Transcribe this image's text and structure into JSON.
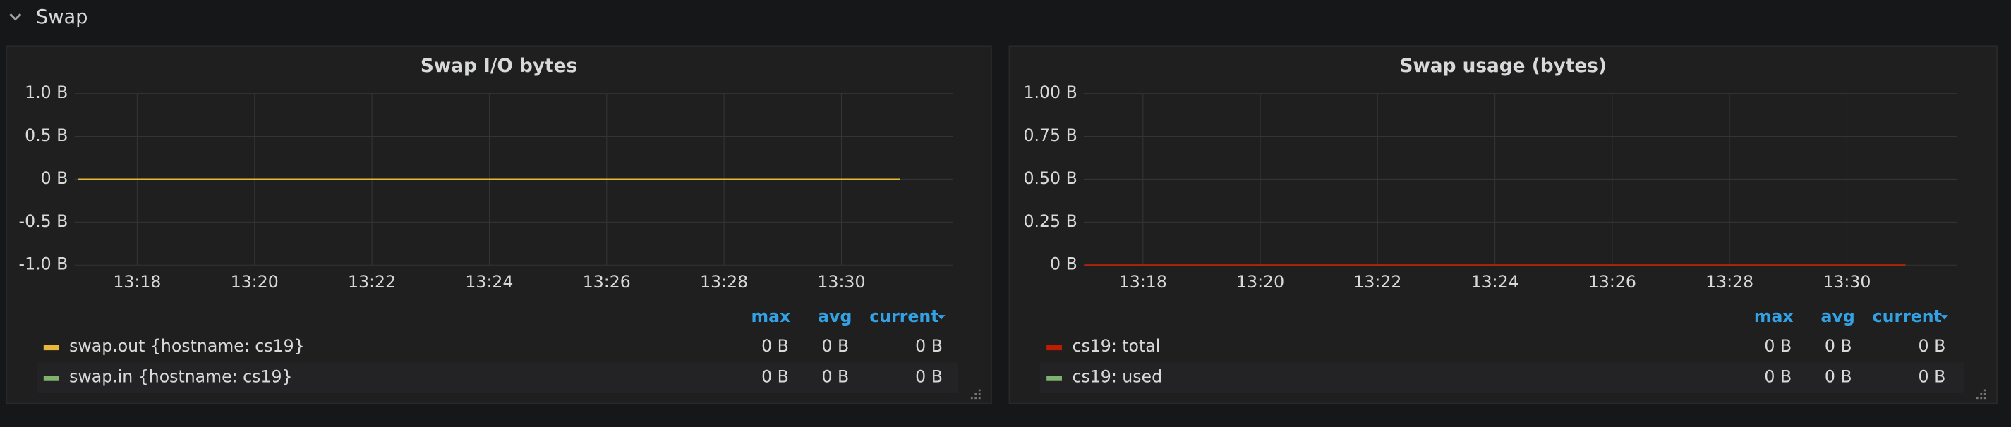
{
  "row_title": "Swap",
  "chart_data": [
    {
      "type": "line",
      "title": "Swap I/O bytes",
      "x": [
        797,
        798,
        799,
        800,
        801,
        802,
        803,
        804,
        805,
        806,
        807,
        808,
        809,
        810,
        811
      ],
      "xlim": [
        796.93,
        811.9
      ],
      "xticks": [
        {
          "value": 798,
          "label": "13:18"
        },
        {
          "value": 800,
          "label": "13:20"
        },
        {
          "value": 802,
          "label": "13:22"
        },
        {
          "value": 804,
          "label": "13:24"
        },
        {
          "value": 806,
          "label": "13:26"
        },
        {
          "value": 808,
          "label": "13:28"
        },
        {
          "value": 810,
          "label": "13:30"
        }
      ],
      "ylim": [
        -1,
        1
      ],
      "yticks": [
        {
          "value": 1,
          "label": "1.0 B"
        },
        {
          "value": 0.5,
          "label": "0.5 B"
        },
        {
          "value": 0,
          "label": "0 B"
        },
        {
          "value": -0.5,
          "label": "-0.5 B"
        },
        {
          "value": -1,
          "label": "-1.0 B"
        }
      ],
      "grid": true,
      "legend_columns": [
        "max",
        "avg",
        "current"
      ],
      "series": [
        {
          "name": "swap.out {hostname: cs19}",
          "color": "#eab839",
          "values": [
            0,
            0,
            0,
            0,
            0,
            0,
            0,
            0,
            0,
            0,
            0,
            0,
            0,
            0,
            0
          ],
          "stats": [
            "0 B",
            "0 B",
            "0 B"
          ]
        },
        {
          "name": "swap.in {hostname: cs19}",
          "color": "#7eb26d",
          "values": [
            0,
            0,
            0,
            0,
            0,
            0,
            0,
            0,
            0,
            0,
            0,
            0,
            0,
            0,
            0
          ],
          "stats": [
            "0 B",
            "0 B",
            "0 B"
          ]
        }
      ]
    },
    {
      "type": "line",
      "title": "Swap usage (bytes)",
      "x": [
        797,
        798,
        799,
        800,
        801,
        802,
        803,
        804,
        805,
        806,
        807,
        808,
        809,
        810,
        811
      ],
      "xlim": [
        796.99,
        811.88
      ],
      "xticks": [
        {
          "value": 798,
          "label": "13:18"
        },
        {
          "value": 800,
          "label": "13:20"
        },
        {
          "value": 802,
          "label": "13:22"
        },
        {
          "value": 804,
          "label": "13:24"
        },
        {
          "value": 806,
          "label": "13:26"
        },
        {
          "value": 808,
          "label": "13:28"
        },
        {
          "value": 810,
          "label": "13:30"
        }
      ],
      "ylim": [
        0,
        1
      ],
      "yticks": [
        {
          "value": 1,
          "label": "1.00 B"
        },
        {
          "value": 0.75,
          "label": "0.75 B"
        },
        {
          "value": 0.5,
          "label": "0.50 B"
        },
        {
          "value": 0.25,
          "label": "0.25 B"
        },
        {
          "value": 0,
          "label": "0 B"
        }
      ],
      "grid": true,
      "legend_columns": [
        "max",
        "avg",
        "current"
      ],
      "series": [
        {
          "name": "cs19: total",
          "color": "#bf1b00",
          "values": [
            0,
            0,
            0,
            0,
            0,
            0,
            0,
            0,
            0,
            0,
            0,
            0,
            0,
            0,
            0
          ],
          "stats": [
            "0 B",
            "0 B",
            "0 B"
          ]
        },
        {
          "name": "cs19: used",
          "color": "#7eb26d",
          "values": [
            0,
            0,
            0,
            0,
            0,
            0,
            0,
            0,
            0,
            0,
            0,
            0,
            0,
            0,
            0
          ],
          "stats": [
            "0 B",
            "0 B",
            "0 B"
          ]
        }
      ]
    }
  ]
}
